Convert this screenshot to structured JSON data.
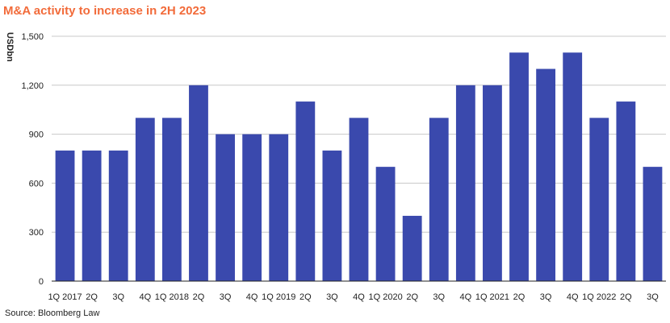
{
  "header": {
    "title": "M&A activity to increase in 2H 2023"
  },
  "footer": {
    "source": "Source: Bloomberg Law"
  },
  "colors": {
    "bar": "#3a49ad",
    "grid": "#c8c8c8",
    "axis": "#222222",
    "title": "#f26b3a"
  },
  "chart_data": {
    "type": "bar",
    "title": "M&A activity to increase in 2H 2023",
    "ylabel": "USDbn",
    "xlabel": "",
    "ylim": [
      0,
      1500
    ],
    "yticks": [
      0,
      300,
      600,
      900,
      1200,
      1500
    ],
    "ytick_labels": [
      "0",
      "300",
      "600",
      "900",
      "1,200",
      "1,500"
    ],
    "grid": true,
    "legend": "none",
    "categories": [
      "1Q 2017",
      "2Q",
      "3Q",
      "4Q",
      "1Q 2018",
      "2Q",
      "3Q",
      "4Q",
      "1Q 2019",
      "2Q",
      "3Q",
      "4Q",
      "1Q 2020",
      "2Q",
      "3Q",
      "4Q",
      "1Q 2021",
      "2Q",
      "3Q",
      "4Q",
      "1Q 2022",
      "2Q",
      "3Q"
    ],
    "values": [
      800,
      800,
      800,
      1000,
      1000,
      1200,
      900,
      900,
      900,
      1100,
      800,
      1000,
      700,
      400,
      1000,
      1200,
      1200,
      1400,
      1300,
      1400,
      1000,
      1100,
      700
    ]
  }
}
